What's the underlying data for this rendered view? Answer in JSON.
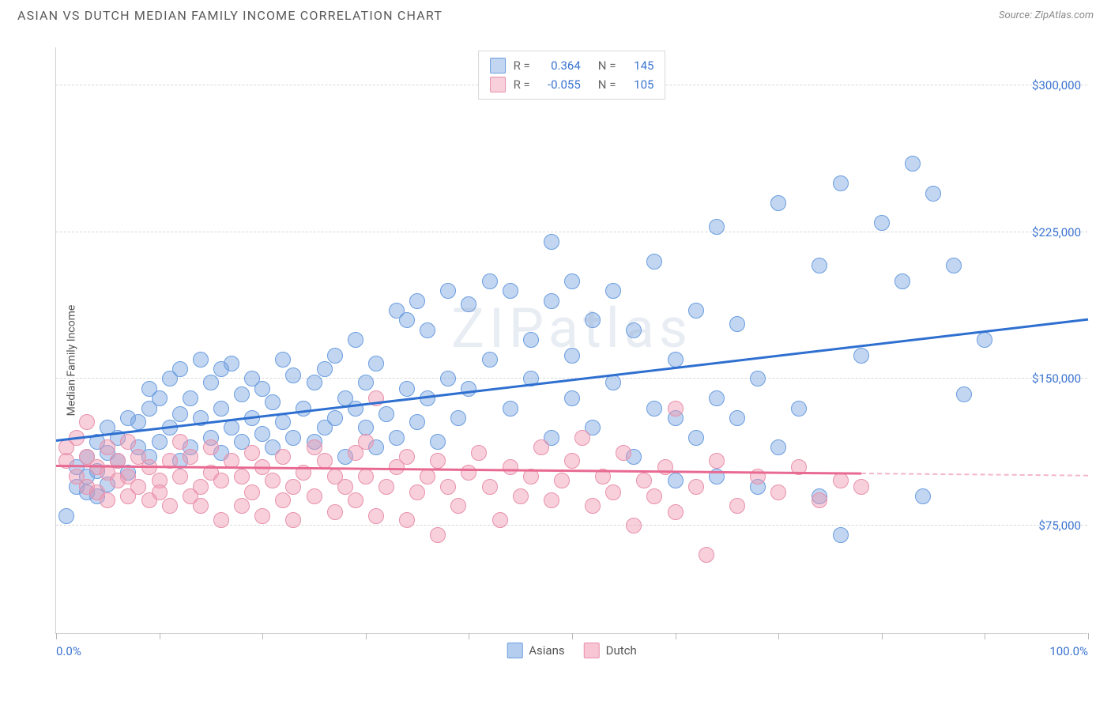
{
  "header": {
    "title": "ASIAN VS DUTCH MEDIAN FAMILY INCOME CORRELATION CHART",
    "source_prefix": "Source: ",
    "source_name": "ZipAtlas.com"
  },
  "chart": {
    "type": "scatter",
    "watermark": "ZIPatlas",
    "ylabel": "Median Family Income",
    "ylim": [
      20000,
      320000
    ],
    "y_ticks": [
      75000,
      150000,
      225000,
      300000
    ],
    "y_tick_labels": [
      "$75,000",
      "$150,000",
      "$225,000",
      "$300,000"
    ],
    "xlim": [
      0,
      100
    ],
    "x_ticks": [
      0,
      10,
      20,
      30,
      40,
      50,
      60,
      70,
      80,
      90,
      100
    ],
    "x_tick_labels": {
      "0": "0.0%",
      "100": "100.0%"
    },
    "grid_color": "#d8d8d8",
    "background_color": "#ffffff",
    "axis_color": "#d0d0d0",
    "label_color_blue": "#3b74d1",
    "series": [
      {
        "name": "Asians",
        "fill": "rgba(120,165,225,0.45)",
        "stroke": "#6a9de0",
        "trend_color": "#2e6fd0",
        "trend_dash_color": "#9fc0ee",
        "marker_radius": 10,
        "R": "0.364",
        "N": "145",
        "trend": {
          "x1": 0,
          "y1": 118000,
          "x2": 100,
          "y2": 180000,
          "solid_until_x": 100
        },
        "points": [
          [
            1,
            80000
          ],
          [
            2,
            95000
          ],
          [
            2,
            105000
          ],
          [
            3,
            92000
          ],
          [
            3,
            100000
          ],
          [
            3,
            110000
          ],
          [
            4,
            90000
          ],
          [
            4,
            103000
          ],
          [
            4,
            118000
          ],
          [
            5,
            96000
          ],
          [
            5,
            112000
          ],
          [
            5,
            125000
          ],
          [
            6,
            108000
          ],
          [
            6,
            120000
          ],
          [
            7,
            102000
          ],
          [
            7,
            130000
          ],
          [
            8,
            115000
          ],
          [
            8,
            128000
          ],
          [
            9,
            110000
          ],
          [
            9,
            135000
          ],
          [
            9,
            145000
          ],
          [
            10,
            118000
          ],
          [
            10,
            140000
          ],
          [
            11,
            125000
          ],
          [
            11,
            150000
          ],
          [
            12,
            108000
          ],
          [
            12,
            132000
          ],
          [
            12,
            155000
          ],
          [
            13,
            115000
          ],
          [
            13,
            140000
          ],
          [
            14,
            130000
          ],
          [
            14,
            160000
          ],
          [
            15,
            120000
          ],
          [
            15,
            148000
          ],
          [
            16,
            112000
          ],
          [
            16,
            135000
          ],
          [
            16,
            155000
          ],
          [
            17,
            125000
          ],
          [
            17,
            158000
          ],
          [
            18,
            118000
          ],
          [
            18,
            142000
          ],
          [
            19,
            130000
          ],
          [
            19,
            150000
          ],
          [
            20,
            122000
          ],
          [
            20,
            145000
          ],
          [
            21,
            115000
          ],
          [
            21,
            138000
          ],
          [
            22,
            128000
          ],
          [
            22,
            160000
          ],
          [
            23,
            120000
          ],
          [
            23,
            152000
          ],
          [
            24,
            135000
          ],
          [
            25,
            118000
          ],
          [
            25,
            148000
          ],
          [
            26,
            125000
          ],
          [
            26,
            155000
          ],
          [
            27,
            130000
          ],
          [
            27,
            162000
          ],
          [
            28,
            110000
          ],
          [
            28,
            140000
          ],
          [
            29,
            135000
          ],
          [
            29,
            170000
          ],
          [
            30,
            125000
          ],
          [
            30,
            148000
          ],
          [
            31,
            115000
          ],
          [
            31,
            158000
          ],
          [
            32,
            132000
          ],
          [
            33,
            120000
          ],
          [
            33,
            185000
          ],
          [
            34,
            145000
          ],
          [
            34,
            180000
          ],
          [
            35,
            128000
          ],
          [
            35,
            190000
          ],
          [
            36,
            140000
          ],
          [
            36,
            175000
          ],
          [
            37,
            118000
          ],
          [
            38,
            150000
          ],
          [
            38,
            195000
          ],
          [
            39,
            130000
          ],
          [
            40,
            145000
          ],
          [
            40,
            188000
          ],
          [
            42,
            160000
          ],
          [
            42,
            200000
          ],
          [
            44,
            135000
          ],
          [
            44,
            195000
          ],
          [
            46,
            150000
          ],
          [
            46,
            170000
          ],
          [
            48,
            120000
          ],
          [
            48,
            190000
          ],
          [
            48,
            220000
          ],
          [
            50,
            140000
          ],
          [
            50,
            162000
          ],
          [
            50,
            200000
          ],
          [
            52,
            125000
          ],
          [
            52,
            180000
          ],
          [
            54,
            148000
          ],
          [
            54,
            195000
          ],
          [
            56,
            110000
          ],
          [
            56,
            175000
          ],
          [
            58,
            135000
          ],
          [
            58,
            210000
          ],
          [
            60,
            98000
          ],
          [
            60,
            130000
          ],
          [
            60,
            160000
          ],
          [
            62,
            120000
          ],
          [
            62,
            185000
          ],
          [
            64,
            100000
          ],
          [
            64,
            140000
          ],
          [
            64,
            228000
          ],
          [
            66,
            130000
          ],
          [
            66,
            178000
          ],
          [
            68,
            95000
          ],
          [
            68,
            150000
          ],
          [
            70,
            115000
          ],
          [
            70,
            240000
          ],
          [
            72,
            135000
          ],
          [
            74,
            90000
          ],
          [
            74,
            208000
          ],
          [
            76,
            70000
          ],
          [
            76,
            250000
          ],
          [
            78,
            162000
          ],
          [
            80,
            230000
          ],
          [
            82,
            200000
          ],
          [
            83,
            260000
          ],
          [
            84,
            90000
          ],
          [
            85,
            245000
          ],
          [
            87,
            208000
          ],
          [
            88,
            142000
          ],
          [
            90,
            170000
          ]
        ]
      },
      {
        "name": "Dutch",
        "fill": "rgba(240,150,175,0.45)",
        "stroke": "#e890ab",
        "trend_color": "#e86a92",
        "trend_dash_color": "#f3b6c8",
        "marker_radius": 10,
        "R": "-0.055",
        "N": "105",
        "trend": {
          "x1": 0,
          "y1": 105000,
          "x2": 100,
          "y2": 100000,
          "solid_until_x": 78
        },
        "points": [
          [
            1,
            108000
          ],
          [
            1,
            115000
          ],
          [
            2,
            100000
          ],
          [
            2,
            120000
          ],
          [
            3,
            95000
          ],
          [
            3,
            110000
          ],
          [
            3,
            128000
          ],
          [
            4,
            92000
          ],
          [
            4,
            105000
          ],
          [
            5,
            88000
          ],
          [
            5,
            102000
          ],
          [
            5,
            115000
          ],
          [
            6,
            98000
          ],
          [
            6,
            108000
          ],
          [
            7,
            90000
          ],
          [
            7,
            100000
          ],
          [
            7,
            118000
          ],
          [
            8,
            95000
          ],
          [
            8,
            110000
          ],
          [
            9,
            88000
          ],
          [
            9,
            105000
          ],
          [
            10,
            98000
          ],
          [
            10,
            92000
          ],
          [
            11,
            85000
          ],
          [
            11,
            108000
          ],
          [
            12,
            100000
          ],
          [
            12,
            118000
          ],
          [
            13,
            90000
          ],
          [
            13,
            110000
          ],
          [
            14,
            95000
          ],
          [
            14,
            85000
          ],
          [
            15,
            102000
          ],
          [
            15,
            115000
          ],
          [
            16,
            78000
          ],
          [
            16,
            98000
          ],
          [
            17,
            108000
          ],
          [
            18,
            85000
          ],
          [
            18,
            100000
          ],
          [
            19,
            92000
          ],
          [
            19,
            112000
          ],
          [
            20,
            80000
          ],
          [
            20,
            105000
          ],
          [
            21,
            98000
          ],
          [
            22,
            88000
          ],
          [
            22,
            110000
          ],
          [
            23,
            95000
          ],
          [
            23,
            78000
          ],
          [
            24,
            102000
          ],
          [
            25,
            115000
          ],
          [
            25,
            90000
          ],
          [
            26,
            108000
          ],
          [
            27,
            82000
          ],
          [
            27,
            100000
          ],
          [
            28,
            95000
          ],
          [
            29,
            88000
          ],
          [
            29,
            112000
          ],
          [
            30,
            118000
          ],
          [
            30,
            100000
          ],
          [
            31,
            80000
          ],
          [
            31,
            140000
          ],
          [
            32,
            95000
          ],
          [
            33,
            105000
          ],
          [
            34,
            78000
          ],
          [
            34,
            110000
          ],
          [
            35,
            92000
          ],
          [
            36,
            100000
          ],
          [
            37,
            70000
          ],
          [
            37,
            108000
          ],
          [
            38,
            95000
          ],
          [
            39,
            85000
          ],
          [
            40,
            102000
          ],
          [
            41,
            112000
          ],
          [
            42,
            95000
          ],
          [
            43,
            78000
          ],
          [
            44,
            105000
          ],
          [
            45,
            90000
          ],
          [
            46,
            100000
          ],
          [
            47,
            115000
          ],
          [
            48,
            88000
          ],
          [
            49,
            98000
          ],
          [
            50,
            108000
          ],
          [
            51,
            120000
          ],
          [
            52,
            85000
          ],
          [
            53,
            100000
          ],
          [
            54,
            92000
          ],
          [
            55,
            112000
          ],
          [
            56,
            75000
          ],
          [
            57,
            98000
          ],
          [
            58,
            90000
          ],
          [
            59,
            105000
          ],
          [
            60,
            82000
          ],
          [
            60,
            135000
          ],
          [
            62,
            95000
          ],
          [
            63,
            60000
          ],
          [
            64,
            108000
          ],
          [
            66,
            85000
          ],
          [
            68,
            100000
          ],
          [
            70,
            92000
          ],
          [
            72,
            105000
          ],
          [
            74,
            88000
          ],
          [
            76,
            98000
          ],
          [
            78,
            95000
          ]
        ]
      }
    ],
    "legend_top": {
      "r_label": "R =",
      "n_label": "N ="
    },
    "legend_bottom": [
      {
        "label": "Asians",
        "fill": "rgba(120,165,225,0.55)",
        "stroke": "#6a9de0"
      },
      {
        "label": "Dutch",
        "fill": "rgba(240,150,175,0.55)",
        "stroke": "#e890ab"
      }
    ]
  }
}
